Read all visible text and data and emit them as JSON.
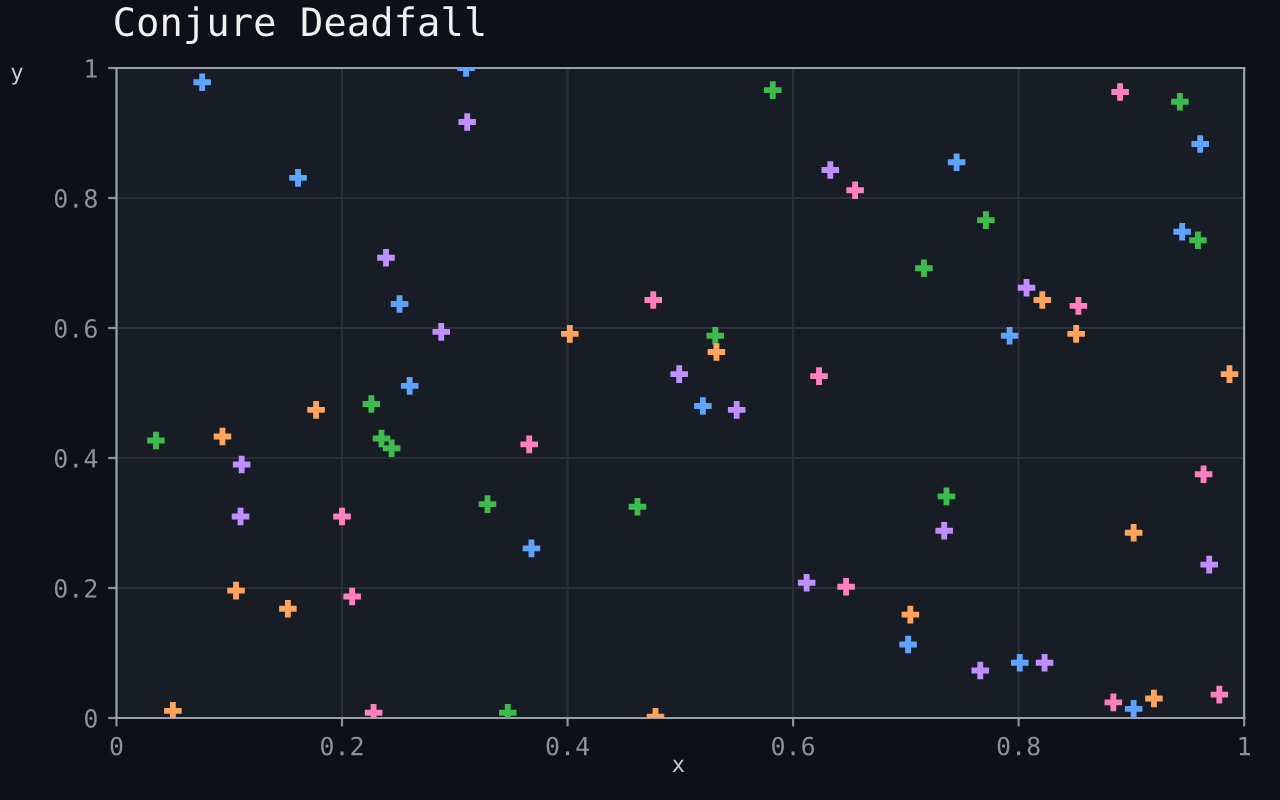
{
  "chart_data": {
    "type": "scatter",
    "title": "Conjure Deadfall",
    "xlabel": "x",
    "ylabel": "y",
    "xlim": [
      0,
      1
    ],
    "ylim": [
      0,
      1
    ],
    "xticks": [
      0,
      0.2,
      0.4,
      0.6,
      0.8,
      1
    ],
    "yticks": [
      0,
      0.2,
      0.4,
      0.6,
      0.8,
      1
    ],
    "grid": true,
    "marker": "cross",
    "series": [
      {
        "color": "#5ea3ff",
        "x": [
          0.076,
          0.161,
          0.31,
          0.251,
          0.26,
          0.368,
          0.52,
          0.702,
          0.745,
          0.792,
          0.801,
          0.902,
          0.945,
          0.961
        ],
        "values": [
          0.978,
          0.831,
          1.0,
          0.637,
          0.511,
          0.261,
          0.48,
          0.113,
          0.855,
          0.588,
          0.085,
          0.014,
          0.748,
          0.883
        ]
      },
      {
        "color": "#c18eff",
        "x": [
          0.111,
          0.11,
          0.239,
          0.288,
          0.311,
          0.499,
          0.55,
          0.612,
          0.633,
          0.734,
          0.766,
          0.807,
          0.823,
          0.969
        ],
        "values": [
          0.39,
          0.31,
          0.708,
          0.594,
          0.917,
          0.529,
          0.474,
          0.208,
          0.843,
          0.288,
          0.073,
          0.662,
          0.085,
          0.236
        ]
      },
      {
        "color": "#ff7fbf",
        "x": [
          0.2,
          0.209,
          0.228,
          0.366,
          0.476,
          0.623,
          0.647,
          0.655,
          0.853,
          0.884,
          0.89,
          0.964,
          0.978
        ],
        "values": [
          0.31,
          0.187,
          0.008,
          0.421,
          0.643,
          0.526,
          0.202,
          0.812,
          0.634,
          0.024,
          0.963,
          0.375,
          0.036
        ]
      },
      {
        "color": "#3dbb4c",
        "x": [
          0.035,
          0.226,
          0.235,
          0.244,
          0.329,
          0.347,
          0.462,
          0.531,
          0.582,
          0.716,
          0.736,
          0.771,
          0.943,
          0.959
        ],
        "values": [
          0.427,
          0.483,
          0.43,
          0.415,
          0.329,
          0.008,
          0.325,
          0.588,
          0.966,
          0.692,
          0.341,
          0.766,
          0.948,
          0.735
        ]
      },
      {
        "color": "#ffa45c",
        "x": [
          0.05,
          0.094,
          0.106,
          0.152,
          0.177,
          0.402,
          0.478,
          0.532,
          0.704,
          0.821,
          0.851,
          0.902,
          0.92,
          0.987
        ],
        "values": [
          0.011,
          0.433,
          0.196,
          0.168,
          0.474,
          0.591,
          0.002,
          0.563,
          0.159,
          0.643,
          0.591,
          0.285,
          0.03,
          0.529
        ]
      }
    ]
  }
}
